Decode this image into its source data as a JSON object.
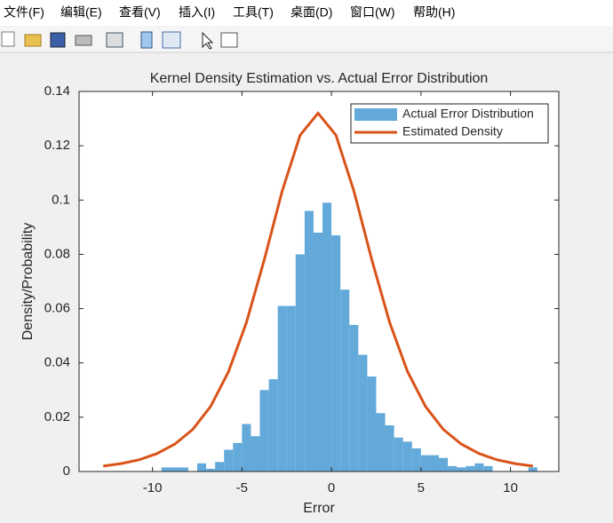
{
  "menu": [
    "文件(F)",
    "编辑(E)",
    "查看(V)",
    "插入(I)",
    "工具(T)",
    "桌面(D)",
    "窗口(W)",
    "帮助(H)"
  ],
  "chart_data": {
    "type": "histogram",
    "title": "Kernel Density Estimation vs. Actual Error Distribution",
    "xlabel": "Error",
    "ylabel": "Density/Probability",
    "xlim": [
      -14.1,
      12.7
    ],
    "ylim": [
      0,
      0.14
    ],
    "xticks": [
      -10,
      -5,
      0,
      5,
      10
    ],
    "yticks": [
      0,
      0.02,
      0.04,
      0.06,
      0.08,
      0.1,
      0.12,
      0.14
    ],
    "legend": "upper right",
    "series": [
      {
        "name": "Actual Error Distribution",
        "type": "histogram",
        "color": "#63a9d9",
        "bins": [
          -9.5,
          -9,
          -8.5,
          -8,
          -7.5,
          -7,
          -6.5,
          -6,
          -5.5,
          -5,
          -4.5,
          -4,
          -3.5,
          -3,
          -2.5,
          -2,
          -1.5,
          -1,
          -0.5,
          0,
          0.5,
          1,
          1.5,
          2,
          2.5,
          3,
          3.5,
          4,
          4.5,
          5,
          5.5,
          6,
          6.5,
          7,
          7.5,
          8,
          8.5,
          9,
          9.5,
          10,
          10.5,
          11,
          11.5
        ],
        "values": [
          0.0015,
          0.0015,
          0.0015,
          0,
          0.003,
          0.001,
          0.0035,
          0.008,
          0.0105,
          0.0175,
          0.013,
          0.03,
          0.034,
          0.061,
          0.061,
          0.08,
          0.096,
          0.088,
          0.099,
          0.087,
          0.067,
          0.054,
          0.043,
          0.035,
          0.0215,
          0.017,
          0.0125,
          0.011,
          0.0085,
          0.006,
          0.006,
          0.005,
          0.002,
          0.0015,
          0.002,
          0.003,
          0.002,
          0,
          0,
          0,
          0,
          0.0015
        ]
      },
      {
        "name": "Estimated Density",
        "type": "line",
        "color": "#d95319",
        "x": [
          -12.75,
          -11.75,
          -10.75,
          -9.75,
          -8.75,
          -7.75,
          -6.75,
          -5.75,
          -4.75,
          -3.75,
          -2.75,
          -1.75,
          -0.75,
          0.25,
          1.25,
          2.25,
          3.25,
          4.25,
          5.25,
          6.25,
          7.25,
          8.25,
          9.25,
          10.25,
          11.25
        ],
        "values": [
          0.002,
          0.0029,
          0.0043,
          0.0066,
          0.0101,
          0.0155,
          0.024,
          0.0368,
          0.0549,
          0.0781,
          0.1034,
          0.1239,
          0.132,
          0.1239,
          0.1034,
          0.0781,
          0.0549,
          0.0368,
          0.024,
          0.0155,
          0.0101,
          0.0066,
          0.0043,
          0.0029,
          0.002
        ]
      }
    ]
  }
}
